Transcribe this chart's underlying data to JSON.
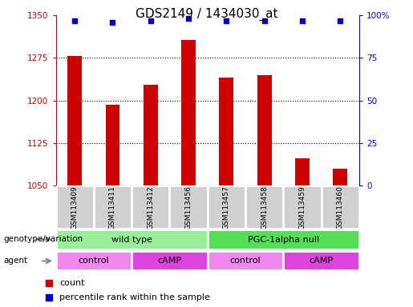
{
  "title": "GDS2149 / 1434030_at",
  "samples": [
    "GSM113409",
    "GSM113411",
    "GSM113412",
    "GSM113456",
    "GSM113457",
    "GSM113458",
    "GSM113459",
    "GSM113460"
  ],
  "bar_values": [
    1278,
    1193,
    1228,
    1307,
    1240,
    1245,
    1098,
    1080
  ],
  "percentile_values": [
    97,
    96,
    97,
    98,
    97,
    97,
    97,
    97
  ],
  "ylim_left": [
    1050,
    1350
  ],
  "ylim_right": [
    0,
    100
  ],
  "yticks_left": [
    1050,
    1125,
    1200,
    1275,
    1350
  ],
  "yticks_right": [
    0,
    25,
    50,
    75,
    100
  ],
  "bar_color": "#cc0000",
  "dot_color": "#0000cc",
  "genotype_groups": [
    {
      "label": "wild type",
      "start": 0,
      "end": 4,
      "color": "#99ee99"
    },
    {
      "label": "PGC-1alpha null",
      "start": 4,
      "end": 8,
      "color": "#55dd55"
    }
  ],
  "agent_groups": [
    {
      "label": "control",
      "start": 0,
      "end": 2,
      "color": "#f088f0"
    },
    {
      "label": "cAMP",
      "start": 2,
      "end": 4,
      "color": "#dd44dd"
    },
    {
      "label": "control",
      "start": 4,
      "end": 6,
      "color": "#f088f0"
    },
    {
      "label": "cAMP",
      "start": 6,
      "end": 8,
      "color": "#dd44dd"
    }
  ],
  "background_color": "#ffffff",
  "title_fontsize": 11
}
